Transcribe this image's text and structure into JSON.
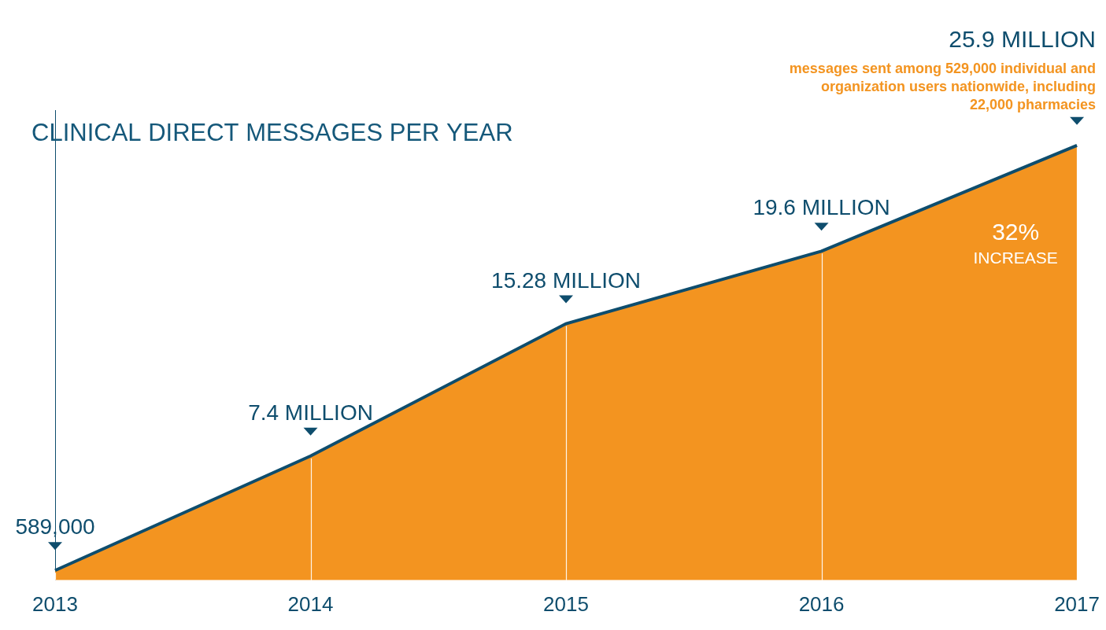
{
  "chart_data": {
    "type": "area",
    "title": "CLINICAL DIRECT MESSAGES PER YEAR",
    "categories": [
      "2013",
      "2014",
      "2015",
      "2016",
      "2017"
    ],
    "values": [
      589000,
      7400000,
      15280000,
      19600000,
      25900000
    ],
    "value_labels": [
      "589,000",
      "7.4 MILLION",
      "15.28 MILLION",
      "19.6 MILLION",
      "25.9 MILLION"
    ],
    "data_labels": true,
    "annotations": [
      "messages sent among 529,000 individual and organization users nationwide, including 22,000 pharmacies",
      "32%",
      "INCREASE"
    ],
    "color": "#f39420",
    "ylim": [
      0,
      28000000
    ],
    "tick_labels": "x",
    "grid": true
  }
}
